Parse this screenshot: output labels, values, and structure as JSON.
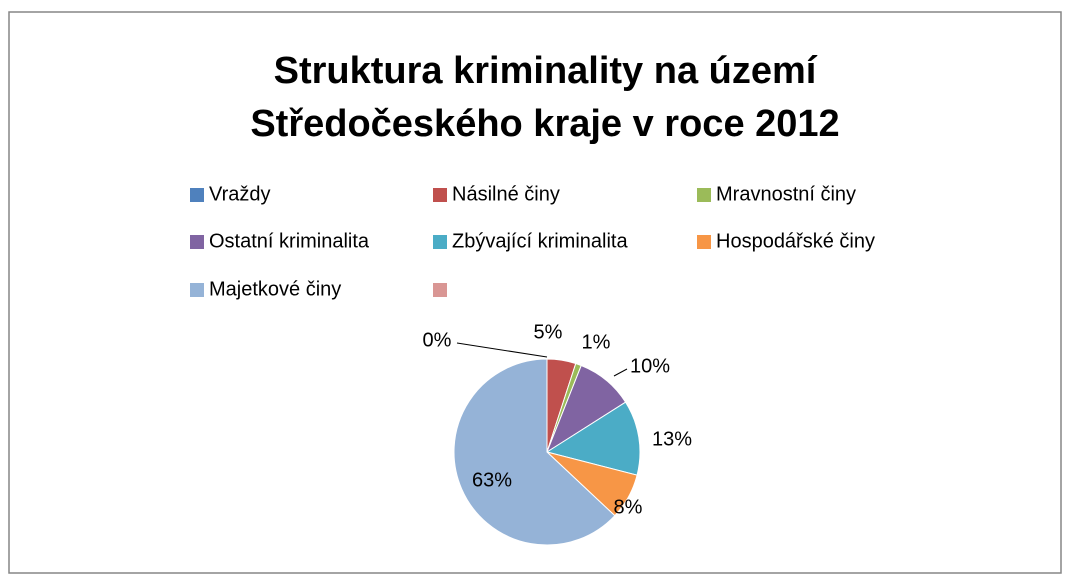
{
  "chart_data": {
    "type": "pie",
    "title": "Struktura kriminality na území Středočeského kraje v roce 2012",
    "categories": [
      "Vraždy",
      "Násilné činy",
      "Mravnostní činy",
      "Ostatní kriminalita",
      "Zbývající kriminalita",
      "Hospodářské činy",
      "Majetkové činy",
      null
    ],
    "values": [
      0,
      5,
      1,
      10,
      13,
      8,
      63,
      0
    ],
    "value_labels": [
      "0%",
      "5%",
      "1%",
      "10%",
      "13%",
      "8%",
      "63%",
      null
    ],
    "colors": [
      "#4f81bd",
      "#c0504d",
      "#9bbb59",
      "#8064a2",
      "#4bacc6",
      "#f79646",
      "#95b3d7",
      "#d99694"
    ],
    "legend": "top"
  }
}
